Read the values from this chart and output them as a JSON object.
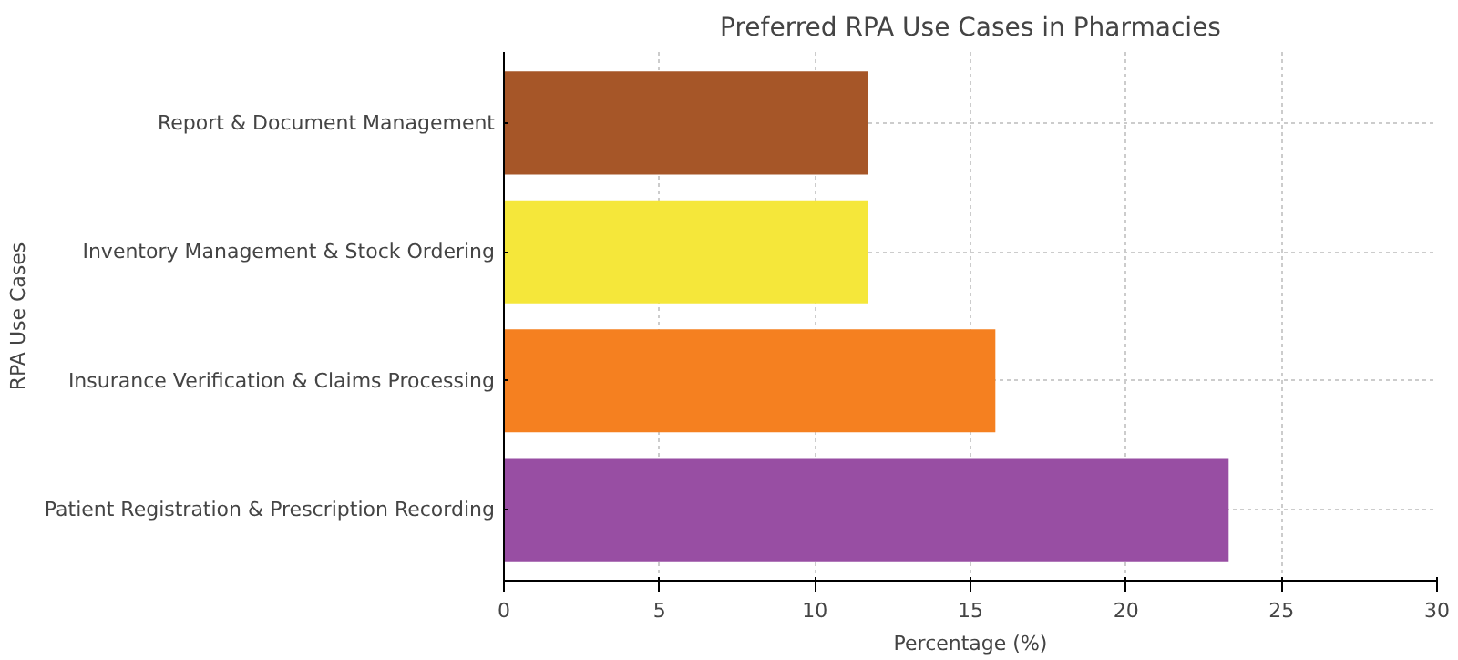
{
  "chart_data": {
    "type": "bar",
    "orientation": "horizontal",
    "title": "Preferred RPA Use Cases in Pharmacies",
    "xlabel": "Percentage (%)",
    "ylabel": "RPA Use Cases",
    "categories": [
      "Report & Document Management",
      "Inventory Management & Stock Ordering",
      "Insurance Verification & Claims Processing",
      "Patient Registration & Prescription Recording"
    ],
    "values": [
      11.7,
      11.7,
      15.8,
      23.3
    ],
    "colors": [
      "#a65628",
      "#f5e73a",
      "#f58020",
      "#984ea3"
    ],
    "xlim": [
      0,
      30
    ],
    "xticks": [
      0,
      5,
      10,
      15,
      20,
      25,
      30
    ],
    "grid": true
  }
}
